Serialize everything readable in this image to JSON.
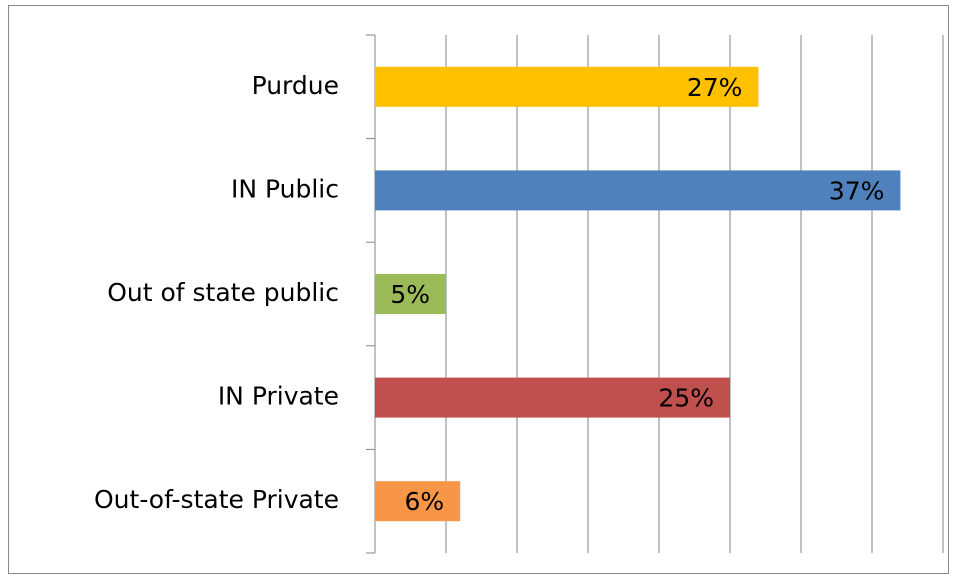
{
  "chart_data": {
    "type": "bar",
    "orientation": "horizontal",
    "categories": [
      "Purdue",
      "IN Public",
      "Out of state public",
      "IN Private",
      "Out-of-state Private"
    ],
    "values": [
      27,
      37,
      5,
      25,
      6
    ],
    "value_labels": [
      "27%",
      "37%",
      "5%",
      "25%",
      "6%"
    ],
    "colors": [
      "#FFC000",
      "#4F81BD",
      "#9BBB59",
      "#C0504D",
      "#F79646"
    ],
    "xlim": [
      0,
      40
    ],
    "xticks": [
      0,
      5,
      10,
      15,
      20,
      25,
      30,
      35,
      40
    ],
    "grid": true
  }
}
